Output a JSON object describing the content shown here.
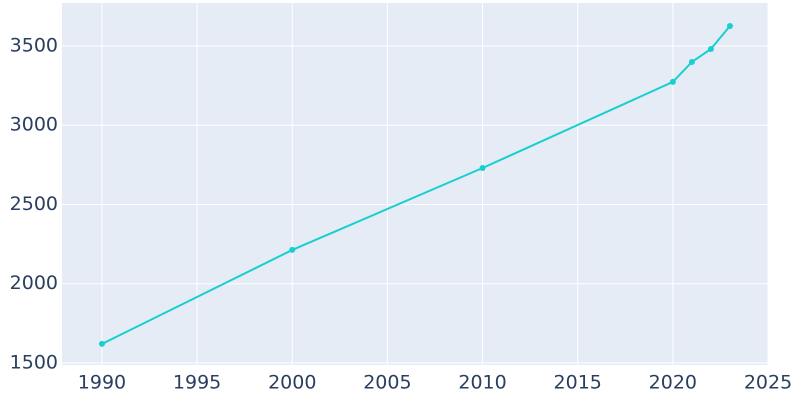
{
  "chart_data": {
    "type": "line",
    "x": [
      1990,
      2000,
      2010,
      2020,
      2021,
      2022,
      2023
    ],
    "series": [
      {
        "color": "#17cfcf",
        "values": [
          1620,
          2213,
          2730,
          3273,
          3399,
          3481,
          3626
        ]
      }
    ],
    "xlim": [
      1987.9,
      2025
    ],
    "xticks": [
      1990,
      1995,
      2000,
      2005,
      2010,
      2015,
      2020,
      2025
    ],
    "ylim": [
      1487,
      3771
    ],
    "yticks": [
      1500,
      2000,
      2500,
      3000,
      3500
    ],
    "grid": true
  }
}
